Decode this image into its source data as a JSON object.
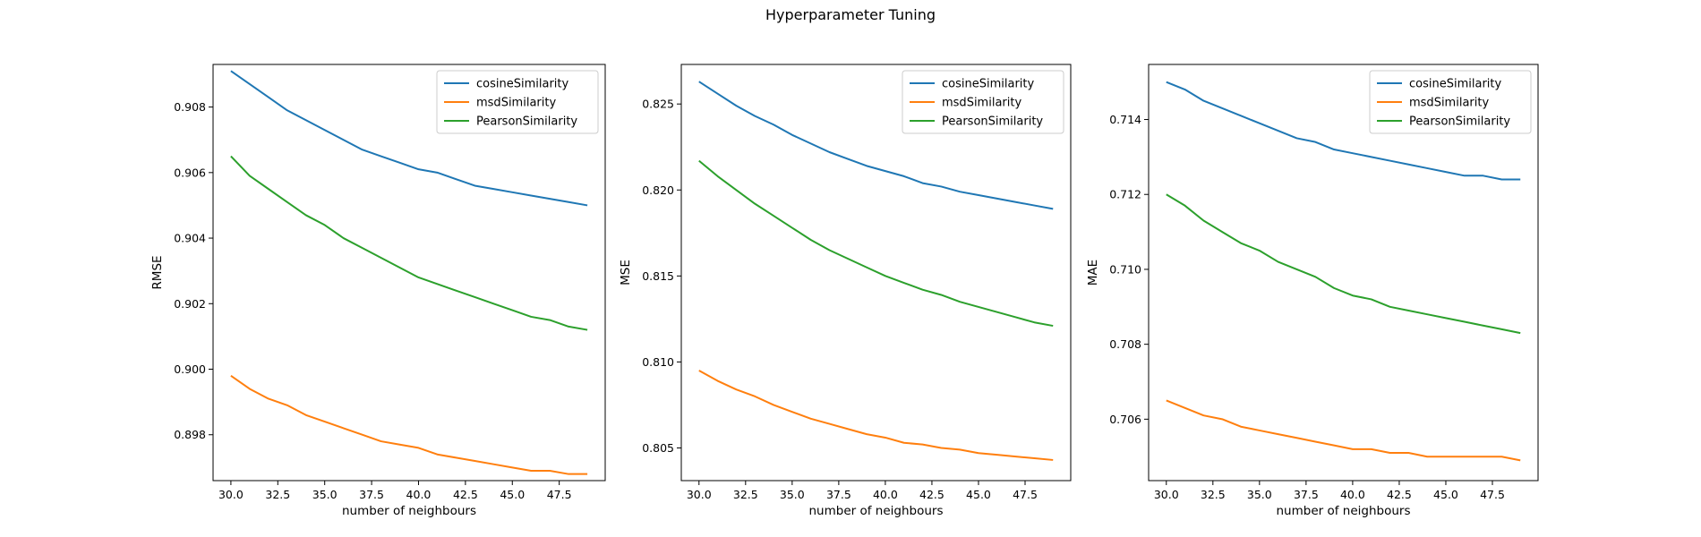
{
  "figure": {
    "title": "Hyperparameter Tuning"
  },
  "colors": {
    "cosine": "#1f77b4",
    "msd": "#ff7f0e",
    "pearson": "#2ca02c"
  },
  "chart_data": [
    {
      "type": "line",
      "title": "",
      "xlabel": "number of neighbours",
      "ylabel": "RMSE",
      "x": [
        30,
        31,
        32,
        33,
        34,
        35,
        36,
        37,
        38,
        39,
        40,
        41,
        42,
        43,
        44,
        45,
        46,
        47,
        48,
        49
      ],
      "xlim": [
        29.05,
        49.95
      ],
      "ylim": [
        0.8966,
        0.9093
      ],
      "xticks": [
        30.0,
        32.5,
        35.0,
        37.5,
        40.0,
        42.5,
        45.0,
        47.5
      ],
      "xtick_labels": [
        "30.0",
        "32.5",
        "35.0",
        "37.5",
        "40.0",
        "42.5",
        "45.0",
        "47.5"
      ],
      "yticks": [
        0.898,
        0.9,
        0.902,
        0.904,
        0.906,
        0.908
      ],
      "ytick_labels": [
        "0.898",
        "0.900",
        "0.902",
        "0.904",
        "0.906",
        "0.908"
      ],
      "legend_position": "upper right",
      "grid": false,
      "series": [
        {
          "name": "cosineSimilarity",
          "color": "#1f77b4",
          "values": [
            0.9091,
            0.9087,
            0.9083,
            0.9079,
            0.9076,
            0.9073,
            0.907,
            0.9067,
            0.9065,
            0.9063,
            0.9061,
            0.906,
            0.9058,
            0.9056,
            0.9055,
            0.9054,
            0.9053,
            0.9052,
            0.9051,
            0.905
          ]
        },
        {
          "name": "msdSimilarity",
          "color": "#ff7f0e",
          "values": [
            0.8998,
            0.8994,
            0.8991,
            0.8989,
            0.8986,
            0.8984,
            0.8982,
            0.898,
            0.8978,
            0.8977,
            0.8976,
            0.8974,
            0.8973,
            0.8972,
            0.8971,
            0.897,
            0.8969,
            0.8969,
            0.8968,
            0.8968
          ]
        },
        {
          "name": "PearsonSimilarity",
          "color": "#2ca02c",
          "values": [
            0.9065,
            0.9059,
            0.9055,
            0.9051,
            0.9047,
            0.9044,
            0.904,
            0.9037,
            0.9034,
            0.9031,
            0.9028,
            0.9026,
            0.9024,
            0.9022,
            0.902,
            0.9018,
            0.9016,
            0.9015,
            0.9013,
            0.9012
          ]
        }
      ]
    },
    {
      "type": "line",
      "title": "",
      "xlabel": "number of neighbours",
      "ylabel": "MSE",
      "x": [
        30,
        31,
        32,
        33,
        34,
        35,
        36,
        37,
        38,
        39,
        40,
        41,
        42,
        43,
        44,
        45,
        46,
        47,
        48,
        49
      ],
      "xlim": [
        29.05,
        49.95
      ],
      "ylim": [
        0.8031,
        0.8273
      ],
      "xticks": [
        30.0,
        32.5,
        35.0,
        37.5,
        40.0,
        42.5,
        45.0,
        47.5
      ],
      "xtick_labels": [
        "30.0",
        "32.5",
        "35.0",
        "37.5",
        "40.0",
        "42.5",
        "45.0",
        "47.5"
      ],
      "yticks": [
        0.805,
        0.81,
        0.815,
        0.82,
        0.825
      ],
      "ytick_labels": [
        "0.805",
        "0.810",
        "0.815",
        "0.820",
        "0.825"
      ],
      "legend_position": "upper right",
      "grid": false,
      "series": [
        {
          "name": "cosineSimilarity",
          "color": "#1f77b4",
          "values": [
            0.8263,
            0.8256,
            0.8249,
            0.8243,
            0.8238,
            0.8232,
            0.8227,
            0.8222,
            0.8218,
            0.8214,
            0.8211,
            0.8208,
            0.8204,
            0.8202,
            0.8199,
            0.8197,
            0.8195,
            0.8193,
            0.8191,
            0.8189
          ]
        },
        {
          "name": "msdSimilarity",
          "color": "#ff7f0e",
          "values": [
            0.8095,
            0.8089,
            0.8084,
            0.808,
            0.8075,
            0.8071,
            0.8067,
            0.8064,
            0.8061,
            0.8058,
            0.8056,
            0.8053,
            0.8052,
            0.805,
            0.8049,
            0.8047,
            0.8046,
            0.8045,
            0.8044,
            0.8043
          ]
        },
        {
          "name": "PearsonSimilarity",
          "color": "#2ca02c",
          "values": [
            0.8217,
            0.8208,
            0.82,
            0.8192,
            0.8185,
            0.8178,
            0.8171,
            0.8165,
            0.816,
            0.8155,
            0.815,
            0.8146,
            0.8142,
            0.8139,
            0.8135,
            0.8132,
            0.8129,
            0.8126,
            0.8123,
            0.8121
          ]
        }
      ]
    },
    {
      "type": "line",
      "title": "",
      "xlabel": "number of neighbours",
      "ylabel": "MAE",
      "x": [
        30,
        31,
        32,
        33,
        34,
        35,
        36,
        37,
        38,
        39,
        40,
        41,
        42,
        43,
        44,
        45,
        46,
        47,
        48,
        49
      ],
      "xlim": [
        29.05,
        49.95
      ],
      "ylim": [
        0.70436,
        0.71547
      ],
      "xticks": [
        30.0,
        32.5,
        35.0,
        37.5,
        40.0,
        42.5,
        45.0,
        47.5
      ],
      "xtick_labels": [
        "30.0",
        "32.5",
        "35.0",
        "37.5",
        "40.0",
        "42.5",
        "45.0",
        "47.5"
      ],
      "yticks": [
        0.706,
        0.708,
        0.71,
        0.712,
        0.714
      ],
      "ytick_labels": [
        "0.706",
        "0.708",
        "0.710",
        "0.712",
        "0.714"
      ],
      "legend_position": "upper right",
      "grid": false,
      "series": [
        {
          "name": "cosineSimilarity",
          "color": "#1f77b4",
          "values": [
            0.715,
            0.7148,
            0.7145,
            0.7143,
            0.7141,
            0.7139,
            0.7137,
            0.7135,
            0.7134,
            0.7132,
            0.7131,
            0.713,
            0.7129,
            0.7128,
            0.7127,
            0.7126,
            0.7125,
            0.7125,
            0.7124,
            0.7124
          ]
        },
        {
          "name": "msdSimilarity",
          "color": "#ff7f0e",
          "values": [
            0.7065,
            0.7063,
            0.7061,
            0.706,
            0.7058,
            0.7057,
            0.7056,
            0.7055,
            0.7054,
            0.7053,
            0.7052,
            0.7052,
            0.7051,
            0.7051,
            0.705,
            0.705,
            0.705,
            0.705,
            0.705,
            0.7049
          ]
        },
        {
          "name": "PearsonSimilarity",
          "color": "#2ca02c",
          "values": [
            0.712,
            0.7117,
            0.7113,
            0.711,
            0.7107,
            0.7105,
            0.7102,
            0.71,
            0.7098,
            0.7095,
            0.7093,
            0.7092,
            0.709,
            0.7089,
            0.7088,
            0.7087,
            0.7086,
            0.7085,
            0.7084,
            0.7083
          ]
        }
      ]
    }
  ]
}
